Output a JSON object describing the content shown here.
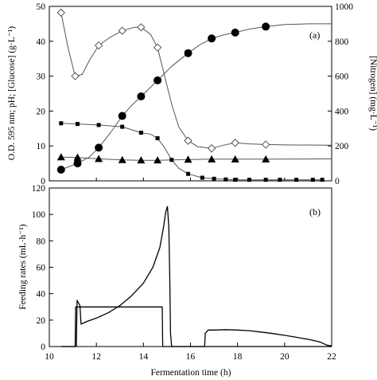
{
  "chart_data": [
    {
      "panel_label": "(a)",
      "type": "line",
      "ylabel_left": "O.D. 595 nm; pH; [Glucose] (g·L⁻¹)",
      "ylabel_right": "[Nitrogen] (mg·L⁻¹)",
      "xlim": [
        10,
        22
      ],
      "ylim_left": [
        0,
        50
      ],
      "ylim_right": [
        0,
        1000
      ],
      "yticks_left": [
        "0",
        "10",
        "20",
        "30",
        "40",
        "50"
      ],
      "yticks_right": [
        "0",
        "200",
        "400",
        "600",
        "800",
        "1000"
      ],
      "series": [
        {
          "marker": "open-diamond",
          "axis": "left",
          "points": [
            [
              10.5,
              48.2
            ],
            [
              11.1,
              30
            ],
            [
              12.1,
              38.8
            ],
            [
              13.1,
              43
            ],
            [
              13.9,
              44
            ],
            [
              14.6,
              38.2
            ],
            [
              15.9,
              11.5
            ],
            [
              16.9,
              9.3
            ],
            [
              17.9,
              10.9
            ],
            [
              19.2,
              10.4
            ]
          ],
          "curve": [
            [
              10.5,
              48.2
            ],
            [
              10.8,
              38
            ],
            [
              11.1,
              30
            ],
            [
              11.4,
              30.5
            ],
            [
              11.7,
              34.5
            ],
            [
              12.1,
              38.8
            ],
            [
              12.6,
              41.2
            ],
            [
              13.1,
              43
            ],
            [
              13.6,
              44
            ],
            [
              13.9,
              44
            ],
            [
              14.3,
              42
            ],
            [
              14.6,
              38.2
            ],
            [
              14.9,
              30
            ],
            [
              15.2,
              22
            ],
            [
              15.5,
              15.5
            ],
            [
              15.9,
              11.5
            ],
            [
              16.3,
              9.8
            ],
            [
              16.9,
              9.3
            ],
            [
              17.4,
              10.2
            ],
            [
              17.9,
              10.9
            ],
            [
              18.5,
              10.6
            ],
            [
              19.2,
              10.4
            ],
            [
              20,
              10.3
            ],
            [
              22,
              10.2
            ]
          ]
        },
        {
          "marker": "filled-circle",
          "axis": "left",
          "points": [
            [
              10.5,
              3.2
            ],
            [
              11.2,
              5.0
            ],
            [
              12.1,
              9.5
            ],
            [
              13.1,
              18.6
            ],
            [
              13.9,
              24.2
            ],
            [
              14.6,
              28.8
            ],
            [
              15.9,
              36.6
            ],
            [
              16.9,
              40.8
            ],
            [
              17.9,
              42.5
            ],
            [
              19.2,
              44.2
            ]
          ],
          "curve": [
            [
              10.5,
              3.2
            ],
            [
              11.2,
              5.0
            ],
            [
              11.7,
              6.8
            ],
            [
              12.1,
              9.5
            ],
            [
              12.6,
              13.8
            ],
            [
              13.1,
              18.6
            ],
            [
              13.5,
              21.6
            ],
            [
              13.9,
              24.2
            ],
            [
              14.3,
              26.8
            ],
            [
              14.6,
              28.8
            ],
            [
              15.2,
              32.8
            ],
            [
              15.9,
              36.6
            ],
            [
              16.4,
              39
            ],
            [
              16.9,
              40.8
            ],
            [
              17.4,
              41.8
            ],
            [
              17.9,
              42.5
            ],
            [
              18.5,
              43.5
            ],
            [
              19.2,
              44.2
            ],
            [
              20,
              44.8
            ],
            [
              21,
              45
            ],
            [
              22,
              45
            ]
          ]
        },
        {
          "marker": "filled-square",
          "axis": "left",
          "points": [
            [
              10.5,
              16.5
            ],
            [
              11.2,
              16.3
            ],
            [
              12.1,
              16.0
            ],
            [
              13.1,
              15.5
            ],
            [
              13.9,
              13.8
            ],
            [
              14.6,
              12.2
            ],
            [
              15.2,
              6.0
            ],
            [
              15.9,
              2.0
            ],
            [
              16.5,
              0.9
            ],
            [
              17.0,
              0.6
            ],
            [
              17.5,
              0.4
            ],
            [
              17.9,
              0.3
            ],
            [
              18.5,
              0.3
            ],
            [
              19.2,
              0.3
            ],
            [
              19.8,
              0.3
            ],
            [
              20.5,
              0.3
            ],
            [
              21.2,
              0.3
            ],
            [
              21.6,
              0.3
            ]
          ],
          "curve": [
            [
              10.5,
              16.5
            ],
            [
              11.2,
              16.3
            ],
            [
              12.1,
              16.0
            ],
            [
              13.1,
              15.5
            ],
            [
              13.9,
              13.8
            ],
            [
              14.3,
              13.4
            ],
            [
              14.6,
              12.2
            ],
            [
              14.9,
              9.5
            ],
            [
              15.2,
              6.0
            ],
            [
              15.5,
              3.6
            ],
            [
              15.9,
              2.0
            ],
            [
              16.5,
              0.9
            ],
            [
              17.0,
              0.6
            ],
            [
              17.9,
              0.3
            ],
            [
              21.6,
              0.3
            ]
          ]
        },
        {
          "marker": "filled-triangle",
          "axis": "left",
          "points": [
            [
              10.5,
              6.8
            ],
            [
              11.2,
              6.7
            ],
            [
              12.1,
              6.3
            ],
            [
              13.1,
              6.0
            ],
            [
              13.9,
              5.9
            ],
            [
              14.6,
              5.9
            ],
            [
              15.9,
              6.1
            ],
            [
              16.9,
              6.2
            ],
            [
              17.9,
              6.2
            ],
            [
              19.2,
              6.2
            ]
          ],
          "curve": [
            [
              10.5,
              6.8
            ],
            [
              11.2,
              6.7
            ],
            [
              12.1,
              6.3
            ],
            [
              13.1,
              6.0
            ],
            [
              13.9,
              5.9
            ],
            [
              14.6,
              5.9
            ],
            [
              15.9,
              6.1
            ],
            [
              16.9,
              6.2
            ],
            [
              19.2,
              6.2
            ],
            [
              22,
              6.3
            ]
          ]
        }
      ]
    },
    {
      "panel_label": "(b)",
      "type": "line",
      "xlabel": "Fermentation time (h)",
      "ylabel": "Feeding rates (mL·h⁻¹)",
      "xlim": [
        10,
        22
      ],
      "ylim": [
        0,
        120
      ],
      "xticks": [
        "10",
        "12",
        "14",
        "16",
        "18",
        "20",
        "22"
      ],
      "yticks": [
        "0",
        "20",
        "40",
        "60",
        "80",
        "100",
        "120"
      ],
      "series": [
        {
          "style": "constant-feed",
          "points": [
            [
              10.5,
              0
            ],
            [
              11.1,
              0
            ],
            [
              11.12,
              30
            ],
            [
              14.8,
              30
            ],
            [
              14.82,
              0
            ],
            [
              22,
              0
            ]
          ]
        },
        {
          "style": "exponential-feed",
          "points": [
            [
              10.5,
              0
            ],
            [
              11.15,
              0
            ],
            [
              11.18,
              35
            ],
            [
              11.3,
              31
            ],
            [
              11.35,
              17
            ],
            [
              11.6,
              19
            ],
            [
              12.0,
              21.5
            ],
            [
              12.5,
              25.5
            ],
            [
              13.0,
              31
            ],
            [
              13.5,
              38.5
            ],
            [
              14.0,
              48
            ],
            [
              14.4,
              60
            ],
            [
              14.7,
              75
            ],
            [
              14.85,
              90
            ],
            [
              14.95,
              102
            ],
            [
              15.02,
              106
            ],
            [
              15.08,
              90
            ],
            [
              15.12,
              50
            ],
            [
              15.15,
              10
            ],
            [
              15.2,
              0
            ],
            [
              16.6,
              0
            ],
            [
              16.63,
              10
            ],
            [
              16.75,
              12.5
            ],
            [
              17.0,
              12.5
            ],
            [
              17.5,
              12.8
            ],
            [
              18.0,
              12.5
            ],
            [
              18.5,
              12
            ],
            [
              19.0,
              11
            ],
            [
              19.5,
              9.8
            ],
            [
              20.0,
              8.5
            ],
            [
              20.5,
              7
            ],
            [
              21.0,
              5.5
            ],
            [
              21.5,
              3.5
            ],
            [
              21.8,
              1
            ],
            [
              22,
              0.5
            ]
          ]
        }
      ]
    }
  ]
}
